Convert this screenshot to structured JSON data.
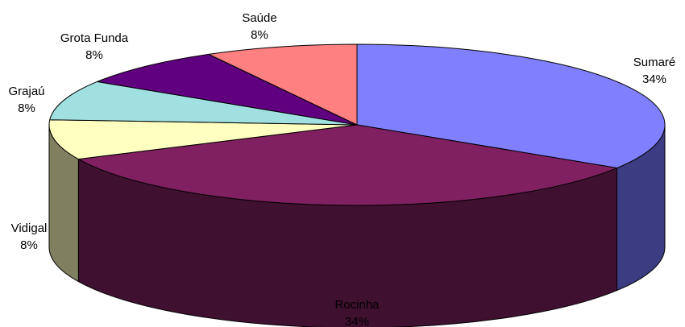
{
  "chart_data": {
    "type": "pie",
    "style": "3d",
    "title": "",
    "slices": [
      {
        "label": "Sumaré",
        "percent_label": "34%",
        "value": 34,
        "color": "#8080ff",
        "side_color": "#3c3c82"
      },
      {
        "label": "Rocinha",
        "percent_label": "34%",
        "value": 34,
        "color": "#802060",
        "side_color": "#401030"
      },
      {
        "label": "Vidigal",
        "percent_label": "8%",
        "value": 8,
        "color": "#ffffc0",
        "side_color": "#808060"
      },
      {
        "label": "Grajaú",
        "percent_label": "8%",
        "value": 8,
        "color": "#a0e0e0",
        "side_color": "#507070"
      },
      {
        "label": "Grota Funda",
        "percent_label": "8%",
        "value": 8,
        "color": "#600080",
        "side_color": "#300040"
      },
      {
        "label": "Saúde",
        "percent_label": "8%",
        "value": 8,
        "color": "#ff8080",
        "side_color": "#804040"
      }
    ]
  }
}
